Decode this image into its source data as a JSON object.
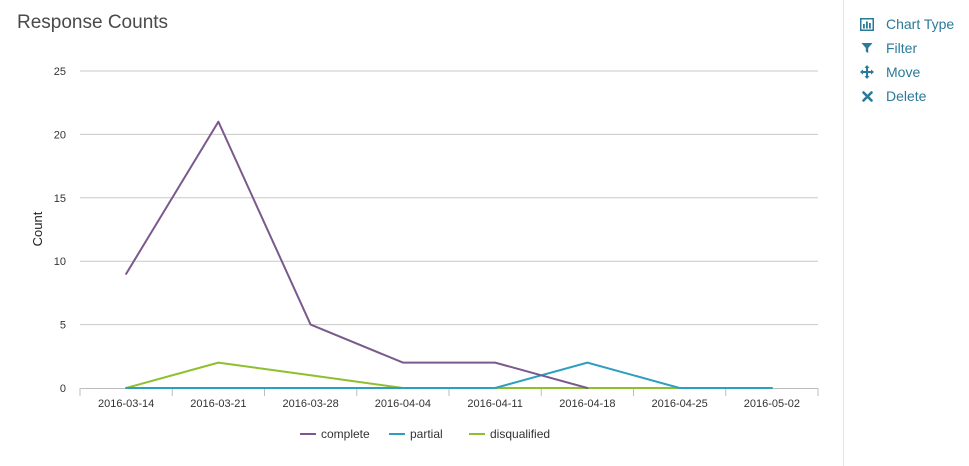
{
  "header": {
    "title": "Response Counts"
  },
  "menu": {
    "items": [
      {
        "label": "Chart Type",
        "icon": "bar-chart-icon"
      },
      {
        "label": "Filter",
        "icon": "filter-icon"
      },
      {
        "label": "Move",
        "icon": "move-icon"
      },
      {
        "label": "Delete",
        "icon": "close-icon"
      }
    ],
    "color": "#2a7a99"
  },
  "chart_data": {
    "type": "line",
    "title": "Response Counts",
    "xlabel": "",
    "ylabel": "Count",
    "categories": [
      "2016-03-14",
      "2016-03-21",
      "2016-03-28",
      "2016-04-04",
      "2016-04-11",
      "2016-04-18",
      "2016-04-25",
      "2016-05-02"
    ],
    "ylim": [
      0,
      25
    ],
    "yticks": [
      0,
      5,
      10,
      15,
      20,
      25
    ],
    "grid": true,
    "legend": "bottom-center",
    "series": [
      {
        "name": "complete",
        "color": "#7a5a8c",
        "values": [
          9,
          21,
          5,
          2,
          2,
          0,
          null,
          null
        ]
      },
      {
        "name": "partial",
        "color": "#2e9fbf",
        "values": [
          0,
          0,
          0,
          0,
          0,
          2,
          0,
          0
        ]
      },
      {
        "name": "disqualified",
        "color": "#8dc02e",
        "values": [
          0,
          2,
          1,
          0,
          0,
          0,
          0,
          0
        ]
      }
    ]
  }
}
